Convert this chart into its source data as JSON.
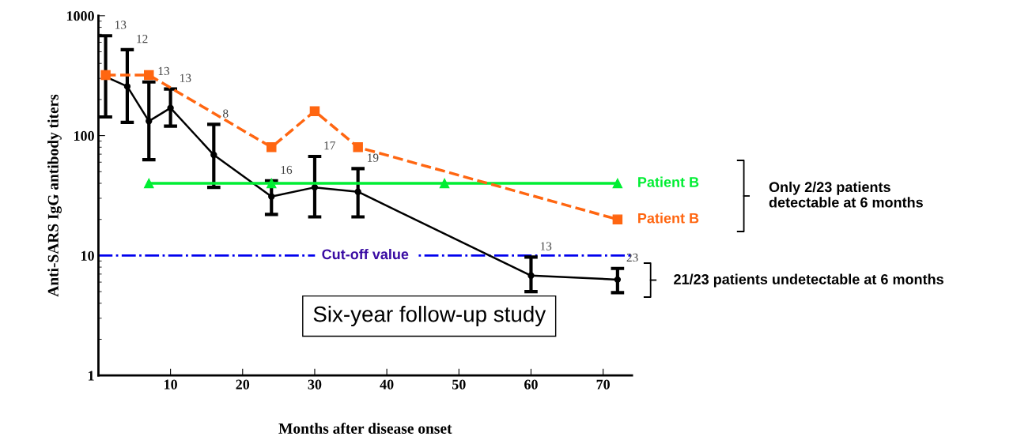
{
  "chart_data": {
    "type": "line",
    "xlabel": "Months after disease onset",
    "ylabel": "Anti-SARS IgG antibody titers",
    "log": "y",
    "xlim": [
      0,
      74
    ],
    "xticks": [
      10,
      20,
      30,
      40,
      50,
      60,
      70
    ],
    "ylim": [
      1,
      1000
    ],
    "yticks": [
      1,
      10,
      100,
      1000
    ],
    "grid": false,
    "legend": false,
    "series": [
      {
        "color": "#000000",
        "marker": "circle",
        "line_style": "solid",
        "x": [
          1,
          4,
          7,
          10,
          16,
          24,
          30,
          36,
          60,
          72
        ],
        "values": [
          310,
          257,
          132,
          170,
          69,
          31,
          37,
          34,
          6.8,
          6.3
        ],
        "errors": [
          [
            143,
            680
          ],
          [
            129,
            520
          ],
          [
            63,
            280
          ],
          [
            120,
            245
          ],
          [
            37,
            124
          ],
          [
            22,
            42
          ],
          [
            21,
            67
          ],
          [
            21,
            53
          ],
          [
            5.0,
            9.7
          ],
          [
            4.9,
            7.8
          ]
        ]
      },
      {
        "name": "Patient B",
        "color": "#00ee33",
        "marker": "triangle",
        "line_style": "solid",
        "x": [
          7,
          24,
          48,
          72
        ],
        "values": [
          40,
          40,
          40,
          40
        ]
      },
      {
        "name": "Patient B",
        "color": "#ff6611",
        "marker": "square",
        "line_style": "dashed",
        "x": [
          1,
          7,
          24,
          30,
          36,
          72
        ],
        "values": [
          320,
          320,
          80,
          160,
          80,
          20
        ]
      }
    ],
    "ref_lines": [
      {
        "axis": "y",
        "value": 10,
        "label": "Cut-off value",
        "color": "#0000ee",
        "line_style": "dashdot"
      }
    ],
    "annotations": [
      {
        "text": "13",
        "x": 1,
        "y": 680
      },
      {
        "text": "12",
        "x": 4,
        "y": 520
      },
      {
        "text": "13",
        "x": 7,
        "y": 280
      },
      {
        "text": "13",
        "x": 10,
        "y": 245
      },
      {
        "text": "8",
        "x": 16,
        "y": 124
      },
      {
        "text": "16",
        "x": 24,
        "y": 42
      },
      {
        "text": "17",
        "x": 30,
        "y": 67
      },
      {
        "text": "19",
        "x": 36,
        "y": 53
      },
      {
        "text": "13",
        "x": 60,
        "y": 9.7
      },
      {
        "text": "23",
        "x": 72,
        "y": 7.8
      },
      "Six-year follow-up study",
      "Only 2/23 patients\ndetectable at 6 months",
      "21/23 patients undetectable at 6 months"
    ]
  }
}
